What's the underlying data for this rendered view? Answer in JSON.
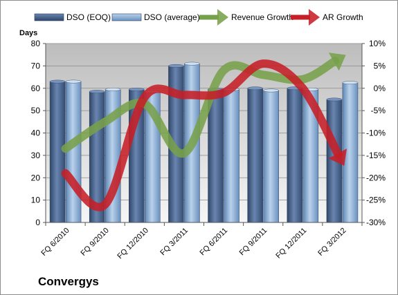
{
  "company": "Convergys",
  "chart_data": {
    "type": "bar",
    "title": "",
    "categories": [
      "FQ 6/2010",
      "FQ 9/2010",
      "FQ 12/2010",
      "FQ 3/2011",
      "FQ 6/2011",
      "FQ 9/2011",
      "FQ 12/2011",
      "FQ 3/2012"
    ],
    "series": [
      {
        "name": "DSO (EOQ)",
        "type": "bar",
        "axis": "left",
        "color": "#4e6a97",
        "values": [
          63,
          58.5,
          59.5,
          70,
          59.5,
          60,
          60,
          55
        ]
      },
      {
        "name": "DSO (average)",
        "type": "bar",
        "axis": "left",
        "color": "#8eb1d7",
        "values": [
          63,
          59.5,
          58.5,
          71,
          59.5,
          59,
          59.5,
          62.5
        ]
      },
      {
        "name": "Revenue Growth",
        "type": "line-arrow",
        "axis": "right",
        "color": "#77a04a",
        "values": [
          -13.5,
          -7.5,
          -3.5,
          -14.5,
          4,
          3,
          2,
          7
        ]
      },
      {
        "name": "AR Growth",
        "type": "line-arrow",
        "axis": "right",
        "color": "#c61f27",
        "values": [
          -19,
          -26,
          -2,
          -1.5,
          -1,
          5.5,
          0,
          -16.5
        ]
      }
    ],
    "left_axis": {
      "label": "Days",
      "min": 0,
      "max": 80,
      "step": 10
    },
    "right_axis": {
      "min": -30,
      "max": 10,
      "step": 5,
      "unit": "%"
    },
    "legend": "top",
    "grid": true
  }
}
